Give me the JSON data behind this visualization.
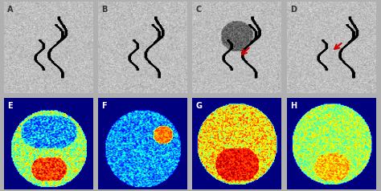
{
  "panels": [
    "A",
    "B",
    "C",
    "D",
    "E",
    "F",
    "G",
    "H"
  ],
  "top_bg_color": "#c8c8c8",
  "bottom_bg_color": "#000000",
  "label_color_top": "#333333",
  "label_color_bottom": "#ffffff",
  "arrow_color": "#cc0000",
  "figure_bg": "#b0b0b0",
  "figsize": [
    4.74,
    2.38
  ],
  "dpi": 100
}
